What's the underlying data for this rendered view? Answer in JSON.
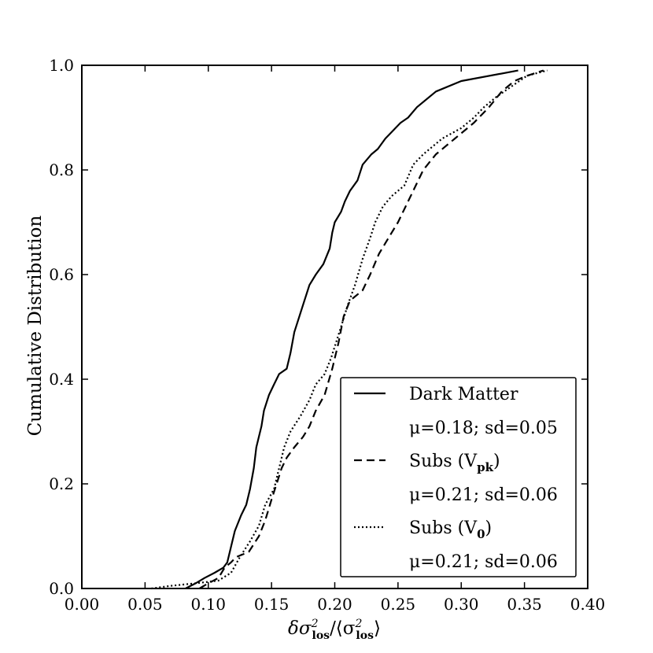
{
  "chart_data": {
    "type": "line",
    "title": "",
    "xlabel": "δσ²los/⟨σ²los⟩",
    "ylabel": "Cumulative Distribution",
    "xlim": [
      0.0,
      0.4
    ],
    "ylim": [
      0.0,
      1.0
    ],
    "xticks": [
      "0.00",
      "0.05",
      "0.10",
      "0.15",
      "0.20",
      "0.25",
      "0.30",
      "0.35",
      "0.40"
    ],
    "yticks": [
      "0.0",
      "0.2",
      "0.4",
      "0.6",
      "0.8",
      "1.0"
    ],
    "grid": false,
    "legend_position": "lower-right",
    "series": [
      {
        "name": "Dark Matter",
        "stat": "μ=0.18; sd=0.05",
        "style": "solid",
        "points": [
          [
            0.082,
            0.0
          ],
          [
            0.09,
            0.01
          ],
          [
            0.097,
            0.02
          ],
          [
            0.105,
            0.03
          ],
          [
            0.112,
            0.04
          ],
          [
            0.115,
            0.05
          ],
          [
            0.118,
            0.08
          ],
          [
            0.121,
            0.11
          ],
          [
            0.126,
            0.14
          ],
          [
            0.13,
            0.16
          ],
          [
            0.133,
            0.19
          ],
          [
            0.136,
            0.23
          ],
          [
            0.138,
            0.27
          ],
          [
            0.142,
            0.31
          ],
          [
            0.144,
            0.34
          ],
          [
            0.148,
            0.37
          ],
          [
            0.152,
            0.39
          ],
          [
            0.156,
            0.41
          ],
          [
            0.162,
            0.42
          ],
          [
            0.165,
            0.45
          ],
          [
            0.168,
            0.49
          ],
          [
            0.172,
            0.52
          ],
          [
            0.176,
            0.55
          ],
          [
            0.18,
            0.58
          ],
          [
            0.185,
            0.6
          ],
          [
            0.191,
            0.62
          ],
          [
            0.196,
            0.65
          ],
          [
            0.198,
            0.68
          ],
          [
            0.2,
            0.7
          ],
          [
            0.205,
            0.72
          ],
          [
            0.208,
            0.74
          ],
          [
            0.212,
            0.76
          ],
          [
            0.218,
            0.78
          ],
          [
            0.222,
            0.81
          ],
          [
            0.229,
            0.83
          ],
          [
            0.234,
            0.84
          ],
          [
            0.24,
            0.86
          ],
          [
            0.244,
            0.87
          ],
          [
            0.252,
            0.89
          ],
          [
            0.258,
            0.9
          ],
          [
            0.265,
            0.92
          ],
          [
            0.28,
            0.95
          ],
          [
            0.3,
            0.97
          ],
          [
            0.345,
            0.99
          ]
        ]
      },
      {
        "name": "Subs (Vpk)",
        "stat": "μ=0.21; sd=0.06",
        "style": "dashed",
        "points": [
          [
            0.093,
            0.0
          ],
          [
            0.1,
            0.01
          ],
          [
            0.108,
            0.02
          ],
          [
            0.113,
            0.04
          ],
          [
            0.118,
            0.05
          ],
          [
            0.122,
            0.06
          ],
          [
            0.132,
            0.07
          ],
          [
            0.14,
            0.1
          ],
          [
            0.145,
            0.13
          ],
          [
            0.15,
            0.17
          ],
          [
            0.154,
            0.2
          ],
          [
            0.158,
            0.23
          ],
          [
            0.162,
            0.25
          ],
          [
            0.168,
            0.27
          ],
          [
            0.175,
            0.29
          ],
          [
            0.18,
            0.31
          ],
          [
            0.185,
            0.34
          ],
          [
            0.192,
            0.37
          ],
          [
            0.198,
            0.42
          ],
          [
            0.203,
            0.47
          ],
          [
            0.207,
            0.52
          ],
          [
            0.212,
            0.55
          ],
          [
            0.222,
            0.57
          ],
          [
            0.228,
            0.6
          ],
          [
            0.235,
            0.64
          ],
          [
            0.24,
            0.66
          ],
          [
            0.245,
            0.68
          ],
          [
            0.25,
            0.7
          ],
          [
            0.256,
            0.73
          ],
          [
            0.262,
            0.76
          ],
          [
            0.27,
            0.8
          ],
          [
            0.28,
            0.83
          ],
          [
            0.295,
            0.86
          ],
          [
            0.31,
            0.89
          ],
          [
            0.322,
            0.92
          ],
          [
            0.332,
            0.95
          ],
          [
            0.342,
            0.97
          ],
          [
            0.352,
            0.98
          ],
          [
            0.365,
            0.99
          ]
        ]
      },
      {
        "name": "Subs (V0)",
        "stat": "μ=0.21; sd=0.06",
        "style": "dotted",
        "points": [
          [
            0.055,
            0.0
          ],
          [
            0.07,
            0.005
          ],
          [
            0.09,
            0.01
          ],
          [
            0.108,
            0.015
          ],
          [
            0.118,
            0.03
          ],
          [
            0.125,
            0.06
          ],
          [
            0.133,
            0.09
          ],
          [
            0.14,
            0.12
          ],
          [
            0.145,
            0.16
          ],
          [
            0.152,
            0.19
          ],
          [
            0.156,
            0.23
          ],
          [
            0.16,
            0.27
          ],
          [
            0.165,
            0.3
          ],
          [
            0.173,
            0.33
          ],
          [
            0.18,
            0.36
          ],
          [
            0.185,
            0.39
          ],
          [
            0.192,
            0.41
          ],
          [
            0.197,
            0.44
          ],
          [
            0.201,
            0.47
          ],
          [
            0.205,
            0.5
          ],
          [
            0.21,
            0.54
          ],
          [
            0.216,
            0.58
          ],
          [
            0.222,
            0.63
          ],
          [
            0.228,
            0.67
          ],
          [
            0.232,
            0.7
          ],
          [
            0.238,
            0.73
          ],
          [
            0.245,
            0.75
          ],
          [
            0.255,
            0.77
          ],
          [
            0.262,
            0.81
          ],
          [
            0.27,
            0.83
          ],
          [
            0.285,
            0.86
          ],
          [
            0.3,
            0.88
          ],
          [
            0.31,
            0.9
          ],
          [
            0.318,
            0.92
          ],
          [
            0.328,
            0.94
          ],
          [
            0.34,
            0.96
          ],
          [
            0.352,
            0.98
          ],
          [
            0.368,
            0.99
          ]
        ]
      }
    ]
  }
}
